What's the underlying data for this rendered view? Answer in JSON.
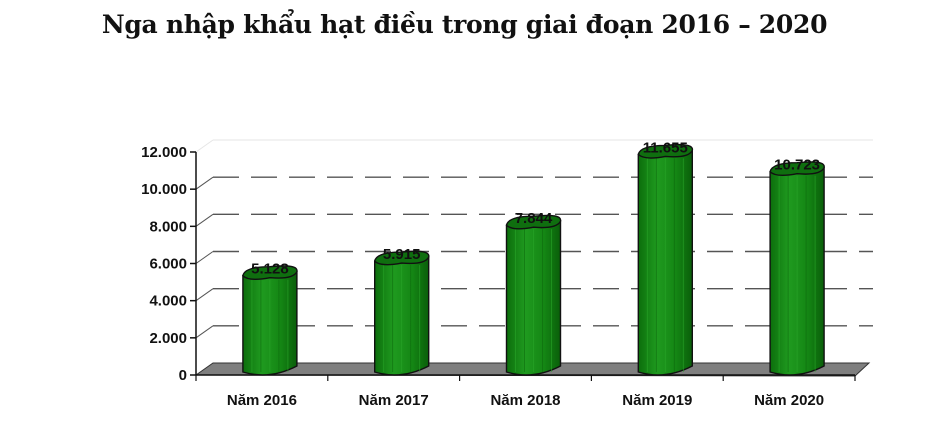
{
  "title": "Nga nhập khẩu hạt điều trong giai đoạn 2016 – 2020",
  "chart_data": {
    "type": "bar",
    "title": "Nga nhập khẩu hạt điều trong giai đoạn 2016 – 2020",
    "categories": [
      "Năm 2016",
      "Năm 2017",
      "Năm 2018",
      "Năm 2019",
      "Năm 2020"
    ],
    "values": [
      5128,
      5915,
      7844,
      11655,
      10723
    ],
    "value_labels": [
      "5.128",
      "5.915",
      "7.844",
      "11.655",
      "10.723"
    ],
    "xlabel": "",
    "ylabel": "",
    "ylim": [
      0,
      12000
    ],
    "yticks": [
      0,
      2000,
      4000,
      6000,
      8000,
      10000,
      12000
    ],
    "ytick_labels": [
      "0",
      "2.000",
      "4.000",
      "6.000",
      "8.000",
      "10.000",
      "12.000"
    ],
    "grid": true,
    "legend": null,
    "style": "3d-cylinder",
    "bar_color": "#1a8a1a"
  }
}
